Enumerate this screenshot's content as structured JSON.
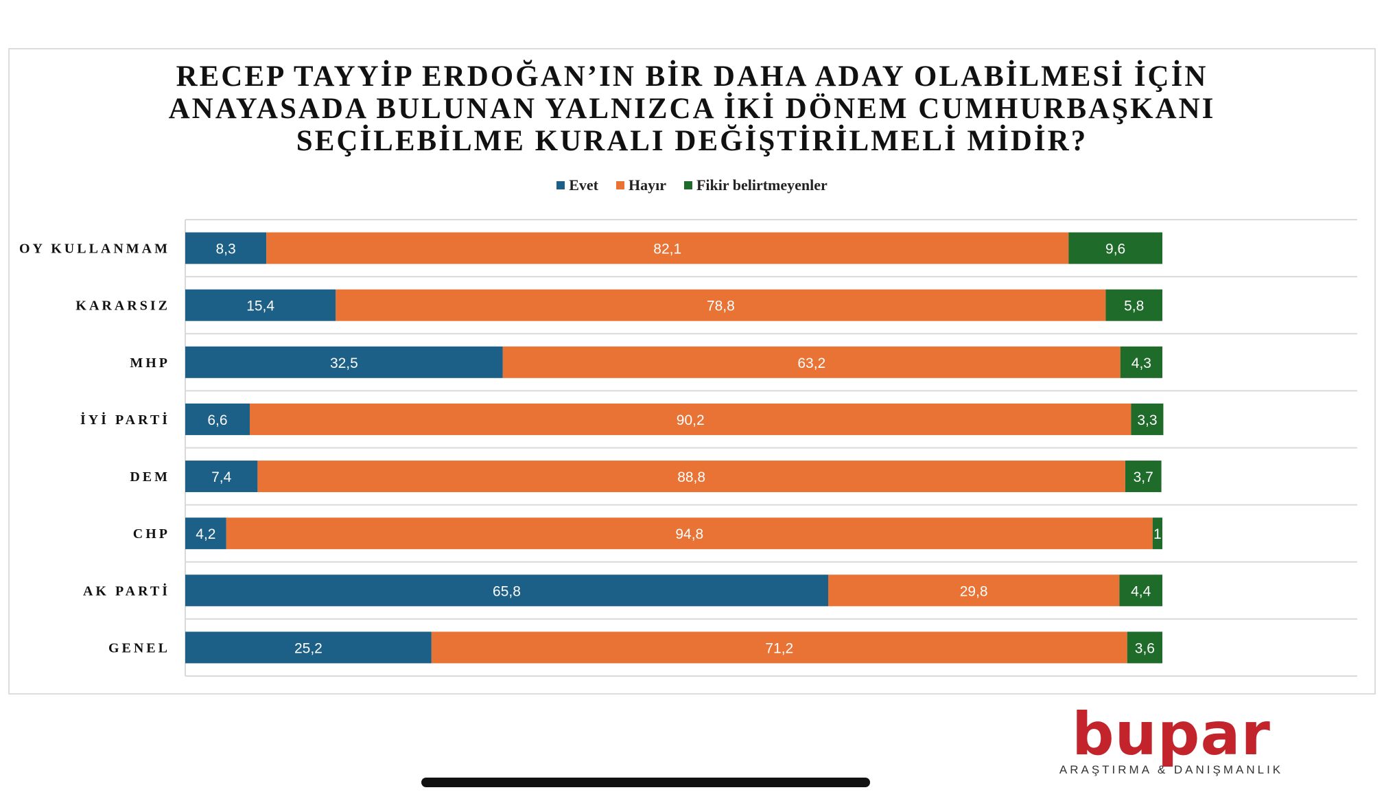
{
  "title_lines": [
    "RECEP TAYYİP ERDOĞAN’IN BİR DAHA ADAY OLABİLMESİ İÇİN",
    "ANAYASADA BULUNAN YALNIZCA İKİ DÖNEM CUMHURBAŞKANI",
    "SEÇİLEBİLME KURALI DEĞİŞTİRİLMELİ MİDİR?"
  ],
  "legend": [
    {
      "label": "Evet",
      "color": "#1c5f87"
    },
    {
      "label": "Hayır",
      "color": "#e87335"
    },
    {
      "label": "Fikir belirtmeyenler",
      "color": "#1e6b2a"
    }
  ],
  "chart_data": {
    "type": "bar",
    "orientation": "horizontal",
    "stacked": true,
    "categories": [
      "OY KULLANMAM",
      "KARARSIZ",
      "MHP",
      "İYİ PARTİ",
      "DEM",
      "CHP",
      "AK PARTİ",
      "GENEL"
    ],
    "series": [
      {
        "name": "Evet",
        "color": "#1c5f87",
        "values": [
          8.3,
          15.4,
          32.5,
          6.6,
          7.4,
          4.2,
          65.8,
          25.2
        ],
        "labels": [
          "8,3",
          "15,4",
          "32,5",
          "6,6",
          "7,4",
          "4,2",
          "65,8",
          "25,2"
        ]
      },
      {
        "name": "Hayır",
        "color": "#e87335",
        "values": [
          82.1,
          78.8,
          63.2,
          90.2,
          88.8,
          94.8,
          29.8,
          71.2
        ],
        "labels": [
          "82,1",
          "78,8",
          "63,2",
          "90,2",
          "88,8",
          "94,8",
          "29,8",
          "71,2"
        ]
      },
      {
        "name": "Fikir belirtmeyenler",
        "color": "#1e6b2a",
        "values": [
          9.6,
          5.8,
          4.3,
          3.3,
          3.7,
          1,
          4.4,
          3.6
        ],
        "labels": [
          "9,6",
          "5,8",
          "4,3",
          "3,3",
          "3,7",
          "1",
          "4,4",
          "3,6"
        ]
      }
    ],
    "xlim": [
      0,
      100
    ],
    "grid": true,
    "legend_position": "top-center"
  },
  "logo": {
    "word": "bupar",
    "subtitle": "ARAŞTIRMA & DANIŞMANLIK"
  }
}
